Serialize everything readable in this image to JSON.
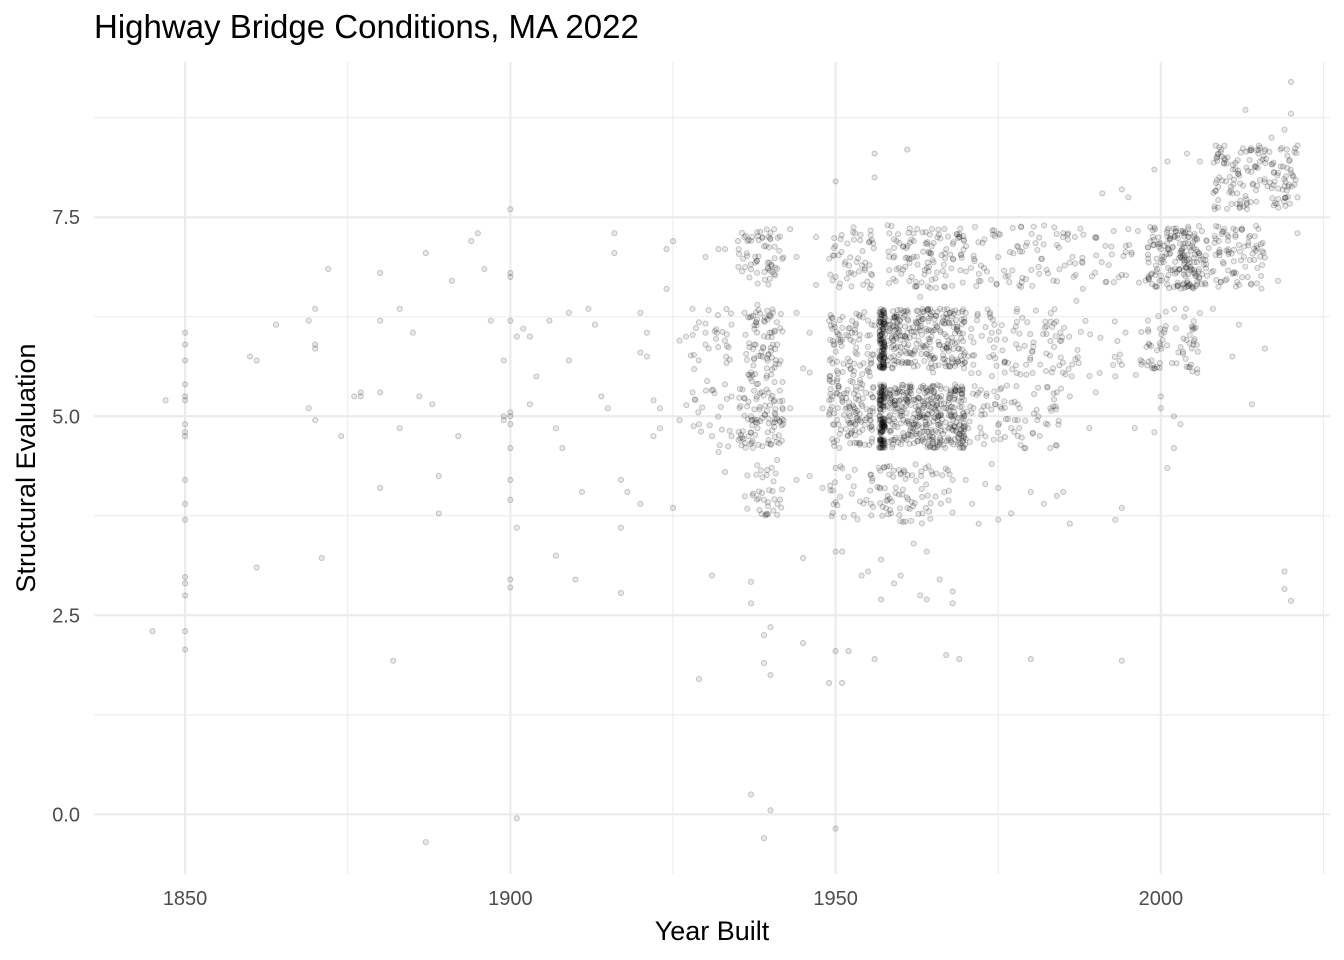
{
  "chart_data": {
    "type": "scatter",
    "title": "Highway Bridge Conditions, MA 2022",
    "xlabel": "Year Built",
    "ylabel": "Structural Evaluation",
    "xlim": [
      1836,
      2026
    ],
    "ylim": [
      -0.75,
      9.45
    ],
    "xticks": [
      1850,
      1900,
      1950,
      2000
    ],
    "xtick_labels": [
      "1850",
      "1900",
      "1950",
      "2000"
    ],
    "xminor": [
      1875,
      1925,
      1975,
      2025
    ],
    "yticks": [
      0.0,
      2.5,
      5.0,
      7.5
    ],
    "ytick_labels": [
      "0.0",
      "2.5",
      "5.0",
      "7.5"
    ],
    "yminor": [
      1.25,
      3.75,
      6.25,
      8.75
    ],
    "grid": true,
    "legend": "none",
    "point_color": "#000000",
    "point_alpha": 0.12,
    "points": [
      [
        1845,
        2.3
      ],
      [
        1847,
        5.2
      ],
      [
        1850,
        6.05
      ],
      [
        1850,
        5.9
      ],
      [
        1850,
        5.7
      ],
      [
        1850,
        5.4
      ],
      [
        1850,
        5.25
      ],
      [
        1850,
        5.2
      ],
      [
        1850,
        4.9
      ],
      [
        1850,
        4.8
      ],
      [
        1850,
        4.75
      ],
      [
        1850,
        4.2
      ],
      [
        1850,
        3.9
      ],
      [
        1850,
        3.7
      ],
      [
        1850,
        2.98
      ],
      [
        1850,
        2.9
      ],
      [
        1850,
        2.75
      ],
      [
        1850,
        2.3
      ],
      [
        1850,
        2.07
      ],
      [
        1860,
        5.75
      ],
      [
        1861,
        5.7
      ],
      [
        1861,
        3.1
      ],
      [
        1864,
        6.15
      ],
      [
        1869,
        6.2
      ],
      [
        1869,
        5.1
      ],
      [
        1870,
        6.35
      ],
      [
        1870,
        5.9
      ],
      [
        1870,
        5.85
      ],
      [
        1870,
        4.95
      ],
      [
        1871,
        3.22
      ],
      [
        1872,
        6.85
      ],
      [
        1874,
        4.75
      ],
      [
        1876,
        5.25
      ],
      [
        1877,
        5.3
      ],
      [
        1877,
        5.25
      ],
      [
        1880,
        6.2
      ],
      [
        1880,
        6.8
      ],
      [
        1880,
        5.3
      ],
      [
        1880,
        4.1
      ],
      [
        1882,
        1.93
      ],
      [
        1883,
        6.35
      ],
      [
        1883,
        4.85
      ],
      [
        1885,
        6.05
      ],
      [
        1886,
        5.25
      ],
      [
        1887,
        7.05
      ],
      [
        1887,
        -0.35
      ],
      [
        1888,
        5.15
      ],
      [
        1889,
        4.25
      ],
      [
        1889,
        3.78
      ],
      [
        1891,
        6.7
      ],
      [
        1892,
        4.75
      ],
      [
        1894,
        7.2
      ],
      [
        1895,
        7.3
      ],
      [
        1896,
        6.85
      ],
      [
        1897,
        6.2
      ],
      [
        1899,
        5.7
      ],
      [
        1899,
        5.0
      ],
      [
        1899,
        4.95
      ],
      [
        1900,
        6.75
      ],
      [
        1900,
        6.2
      ],
      [
        1900,
        5.05
      ],
      [
        1900,
        5.0
      ],
      [
        1900,
        4.9
      ],
      [
        1900,
        4.6
      ],
      [
        1900,
        4.2
      ],
      [
        1900,
        3.95
      ],
      [
        1900,
        2.95
      ],
      [
        1900,
        2.85
      ],
      [
        1900,
        6.8
      ],
      [
        1900,
        7.6
      ],
      [
        1901,
        6.0
      ],
      [
        1901,
        3.6
      ],
      [
        1901,
        -0.05
      ],
      [
        1902,
        6.1
      ],
      [
        1903,
        6.0
      ],
      [
        1903,
        5.15
      ],
      [
        1904,
        5.5
      ],
      [
        1906,
        6.2
      ],
      [
        1907,
        4.85
      ],
      [
        1907,
        3.25
      ],
      [
        1908,
        4.6
      ],
      [
        1909,
        6.3
      ],
      [
        1909,
        5.7
      ],
      [
        1910,
        2.95
      ],
      [
        1911,
        4.05
      ],
      [
        1912,
        6.35
      ],
      [
        1913,
        6.15
      ],
      [
        1914,
        5.25
      ],
      [
        1915,
        5.1
      ],
      [
        1916,
        7.3
      ],
      [
        1916,
        7.05
      ],
      [
        1917,
        4.2
      ],
      [
        1917,
        3.6
      ],
      [
        1917,
        2.78
      ],
      [
        1918,
        4.05
      ],
      [
        1920,
        6.3
      ],
      [
        1920,
        5.8
      ],
      [
        1921,
        5.75
      ],
      [
        1922,
        5.2
      ],
      [
        1923,
        4.85
      ],
      [
        1924,
        6.6
      ],
      [
        1925,
        3.85
      ],
      [
        1927,
        6.0
      ],
      [
        1928,
        5.3
      ],
      [
        1929,
        4.9
      ],
      [
        1929,
        1.7
      ],
      [
        1930,
        6.05
      ],
      [
        1930,
        5.9
      ],
      [
        1931,
        4.75
      ],
      [
        1931,
        3.0
      ],
      [
        1932,
        7.1
      ],
      [
        1933,
        7.1
      ],
      [
        1933,
        5.4
      ],
      [
        1933,
        4.3
      ],
      [
        1934,
        5.25
      ],
      [
        1935,
        7.2
      ],
      [
        1936,
        6.3
      ],
      [
        1937,
        5.0
      ],
      [
        1937,
        2.92
      ],
      [
        1937,
        2.65
      ],
      [
        1937,
        0.25
      ],
      [
        1938,
        6.4
      ],
      [
        1938,
        4.85
      ],
      [
        1939,
        6.2
      ],
      [
        1939,
        3.95
      ],
      [
        1940,
        7.3
      ],
      [
        1940,
        4.65
      ],
      [
        1941,
        6.85
      ],
      [
        1941,
        5.9
      ],
      [
        1942,
        4.95
      ],
      [
        1944,
        7.0
      ],
      [
        1944,
        6.3
      ],
      [
        1944,
        4.2
      ],
      [
        1945,
        5.6
      ],
      [
        1945,
        3.22
      ],
      [
        1945,
        2.15
      ],
      [
        1946,
        6.05
      ],
      [
        1946,
        4.25
      ],
      [
        1947,
        7.25
      ],
      [
        1948,
        5.1
      ],
      [
        1949,
        5.2
      ],
      [
        1949,
        1.65
      ],
      [
        1950,
        7.95
      ],
      [
        1950,
        6.75
      ],
      [
        1950,
        4.35
      ],
      [
        1950,
        3.3
      ],
      [
        1950,
        2.05
      ],
      [
        1950,
        -0.18
      ],
      [
        1951,
        1.65
      ],
      [
        1952,
        2.05
      ],
      [
        1953,
        7.3
      ],
      [
        1953,
        4.9
      ],
      [
        1954,
        5.15
      ],
      [
        1954,
        3.0
      ],
      [
        1955,
        6.2
      ],
      [
        1956,
        8.3
      ],
      [
        1956,
        8.0
      ],
      [
        1956,
        1.95
      ],
      [
        1957,
        3.2
      ],
      [
        1957,
        2.7
      ],
      [
        1958,
        4.0
      ],
      [
        1959,
        2.9
      ],
      [
        1960,
        3.0
      ],
      [
        1961,
        8.35
      ],
      [
        1962,
        7.2
      ],
      [
        1963,
        6.5
      ],
      [
        1963,
        2.75
      ],
      [
        1964,
        3.3
      ],
      [
        1965,
        5.55
      ],
      [
        1966,
        2.95
      ],
      [
        1967,
        7.1
      ],
      [
        1967,
        5.1
      ],
      [
        1967,
        2.0
      ],
      [
        1968,
        4.2
      ],
      [
        1968,
        2.8
      ],
      [
        1968,
        2.65
      ],
      [
        1969,
        1.95
      ],
      [
        1970,
        4.2
      ],
      [
        1971,
        3.9
      ],
      [
        1972,
        3.65
      ],
      [
        1973,
        4.15
      ],
      [
        1974,
        4.4
      ],
      [
        1975,
        7.0
      ],
      [
        1975,
        3.7
      ],
      [
        1977,
        3.78
      ],
      [
        1978,
        5.15
      ],
      [
        1980,
        4.05
      ],
      [
        1980,
        1.95
      ],
      [
        1982,
        3.9
      ],
      [
        1983,
        4.6
      ],
      [
        1984,
        4.0
      ],
      [
        1985,
        4.05
      ],
      [
        1986,
        3.65
      ],
      [
        1987,
        6.45
      ],
      [
        1988,
        6.6
      ],
      [
        1989,
        4.85
      ],
      [
        1990,
        5.3
      ],
      [
        1991,
        7.8
      ],
      [
        1992,
        6.9
      ],
      [
        1993,
        5.5
      ],
      [
        1993,
        3.7
      ],
      [
        1994,
        7.85
      ],
      [
        1994,
        3.85
      ],
      [
        1994,
        1.93
      ],
      [
        1995,
        7.75
      ],
      [
        1996,
        4.85
      ],
      [
        1997,
        5.65
      ],
      [
        1998,
        6.2
      ],
      [
        1999,
        4.8
      ],
      [
        1999,
        8.1
      ],
      [
        2000,
        5.1
      ],
      [
        2000,
        7.1
      ],
      [
        2001,
        4.35
      ],
      [
        2001,
        8.2
      ],
      [
        2002,
        5.0
      ],
      [
        2003,
        4.9
      ],
      [
        2004,
        8.3
      ],
      [
        2005,
        5.9
      ],
      [
        2006,
        8.2
      ],
      [
        2007,
        7.2
      ],
      [
        2008,
        6.35
      ],
      [
        2009,
        8.0
      ],
      [
        2010,
        7.95
      ],
      [
        2011,
        5.75
      ],
      [
        2012,
        6.15
      ],
      [
        2013,
        8.85
      ],
      [
        2014,
        5.15
      ],
      [
        2015,
        8.3
      ],
      [
        2016,
        5.85
      ],
      [
        2017,
        8.5
      ],
      [
        2018,
        6.7
      ],
      [
        2019,
        8.6
      ],
      [
        2019,
        3.05
      ],
      [
        2019,
        2.83
      ],
      [
        2020,
        9.2
      ],
      [
        2020,
        2.68
      ],
      [
        2020,
        8.8
      ],
      [
        2021,
        8.4
      ],
      [
        2021,
        7.75
      ],
      [
        2021,
        7.3
      ],
      [
        1985,
        7.3
      ],
      [
        1990,
        7.25
      ],
      [
        1995,
        7.35
      ],
      [
        2000,
        5.25
      ],
      [
        1999,
        5.6
      ],
      [
        2002,
        4.6
      ],
      [
        1958,
        7.4
      ],
      [
        1962,
        3.4
      ],
      [
        1941,
        4.45
      ],
      [
        1939,
        1.9
      ],
      [
        1940,
        1.75
      ],
      [
        1939,
        2.25
      ],
      [
        1940,
        2.35
      ],
      [
        1940,
        0.05
      ],
      [
        1939,
        -0.3
      ],
      [
        1951,
        3.3
      ],
      [
        1955,
        3.05
      ],
      [
        1964,
        2.7
      ],
      [
        1943,
        7.35
      ],
      [
        1947,
        6.65
      ],
      [
        1952,
        6.8
      ],
      [
        1936,
        7.25
      ],
      [
        1930,
        7.0
      ],
      [
        1928,
        6.35
      ],
      [
        1926,
        5.95
      ],
      [
        1925,
        7.2
      ],
      [
        1924,
        7.1
      ],
      [
        1921,
        6.05
      ],
      [
        1923,
        5.1
      ],
      [
        1926,
        4.95
      ],
      [
        1922,
        4.75
      ],
      [
        1920,
        3.9
      ],
      [
        1933,
        5.95
      ],
      [
        1934,
        6.15
      ],
      [
        1937,
        5.55
      ],
      [
        1934,
        4.75
      ],
      [
        1932,
        4.55
      ],
      [
        1943,
        5.1
      ],
      [
        1946,
        5.55
      ],
      [
        1948,
        4.1
      ],
      [
        1949,
        6.2
      ],
      [
        1953,
        6.05
      ],
      [
        1970,
        6.3
      ],
      [
        1974,
        6.05
      ],
      [
        1976,
        5.55
      ],
      [
        1977,
        4.85
      ],
      [
        1979,
        4.6
      ],
      [
        1981,
        4.95
      ],
      [
        1983,
        5.1
      ],
      [
        1986,
        5.25
      ],
      [
        1984,
        5.3
      ],
      [
        1975,
        4.1
      ]
    ],
    "clusters": [
      {
        "x": [
          1935,
          1942
        ],
        "y": [
          6.65,
          7.35
        ],
        "n": 60
      },
      {
        "x": [
          1936,
          1942
        ],
        "y": [
          5.4,
          6.35
        ],
        "n": 80
      },
      {
        "x": [
          1935,
          1942
        ],
        "y": [
          4.6,
          5.35
        ],
        "n": 90
      },
      {
        "x": [
          1936,
          1942
        ],
        "y": [
          3.75,
          4.4
        ],
        "n": 35
      },
      {
        "x": [
          1927,
          1934
        ],
        "y": [
          4.6,
          6.35
        ],
        "n": 45
      },
      {
        "x": [
          1949,
          1956
        ],
        "y": [
          6.6,
          7.4
        ],
        "n": 50
      },
      {
        "x": [
          1949,
          1956
        ],
        "y": [
          5.4,
          6.35
        ],
        "n": 90
      },
      {
        "x": [
          1949,
          1956
        ],
        "y": [
          4.6,
          5.4
        ],
        "n": 110
      },
      {
        "x": [
          1949,
          1956
        ],
        "y": [
          3.7,
          4.4
        ],
        "n": 30
      },
      {
        "x": [
          1956.7,
          1957.6
        ],
        "y": [
          5.6,
          6.35
        ],
        "n": 120
      },
      {
        "x": [
          1956.7,
          1957.6
        ],
        "y": [
          4.6,
          5.4
        ],
        "n": 130
      },
      {
        "x": [
          1958,
          1970
        ],
        "y": [
          6.6,
          7.4
        ],
        "n": 110
      },
      {
        "x": [
          1958,
          1970
        ],
        "y": [
          5.6,
          6.35
        ],
        "n": 260
      },
      {
        "x": [
          1958,
          1970
        ],
        "y": [
          4.6,
          5.4
        ],
        "n": 360
      },
      {
        "x": [
          1956,
          1968
        ],
        "y": [
          3.65,
          4.4
        ],
        "n": 80
      },
      {
        "x": [
          1970,
          1985
        ],
        "y": [
          6.6,
          7.4
        ],
        "n": 70
      },
      {
        "x": [
          1970,
          1985
        ],
        "y": [
          5.5,
          6.35
        ],
        "n": 90
      },
      {
        "x": [
          1970,
          1985
        ],
        "y": [
          4.6,
          5.4
        ],
        "n": 80
      },
      {
        "x": [
          1985,
          1998
        ],
        "y": [
          6.6,
          7.4
        ],
        "n": 40
      },
      {
        "x": [
          1985,
          1998
        ],
        "y": [
          5.5,
          6.2
        ],
        "n": 30
      },
      {
        "x": [
          1998,
          2003
        ],
        "y": [
          6.6,
          7.4
        ],
        "n": 90
      },
      {
        "x": [
          1998,
          2006
        ],
        "y": [
          5.5,
          6.35
        ],
        "n": 60
      },
      {
        "x": [
          2003,
          2006
        ],
        "y": [
          6.6,
          7.4
        ],
        "n": 90
      },
      {
        "x": [
          2006,
          2016
        ],
        "y": [
          6.6,
          7.4
        ],
        "n": 100
      },
      {
        "x": [
          2008,
          2021
        ],
        "y": [
          7.6,
          8.4
        ],
        "n": 150
      }
    ]
  }
}
